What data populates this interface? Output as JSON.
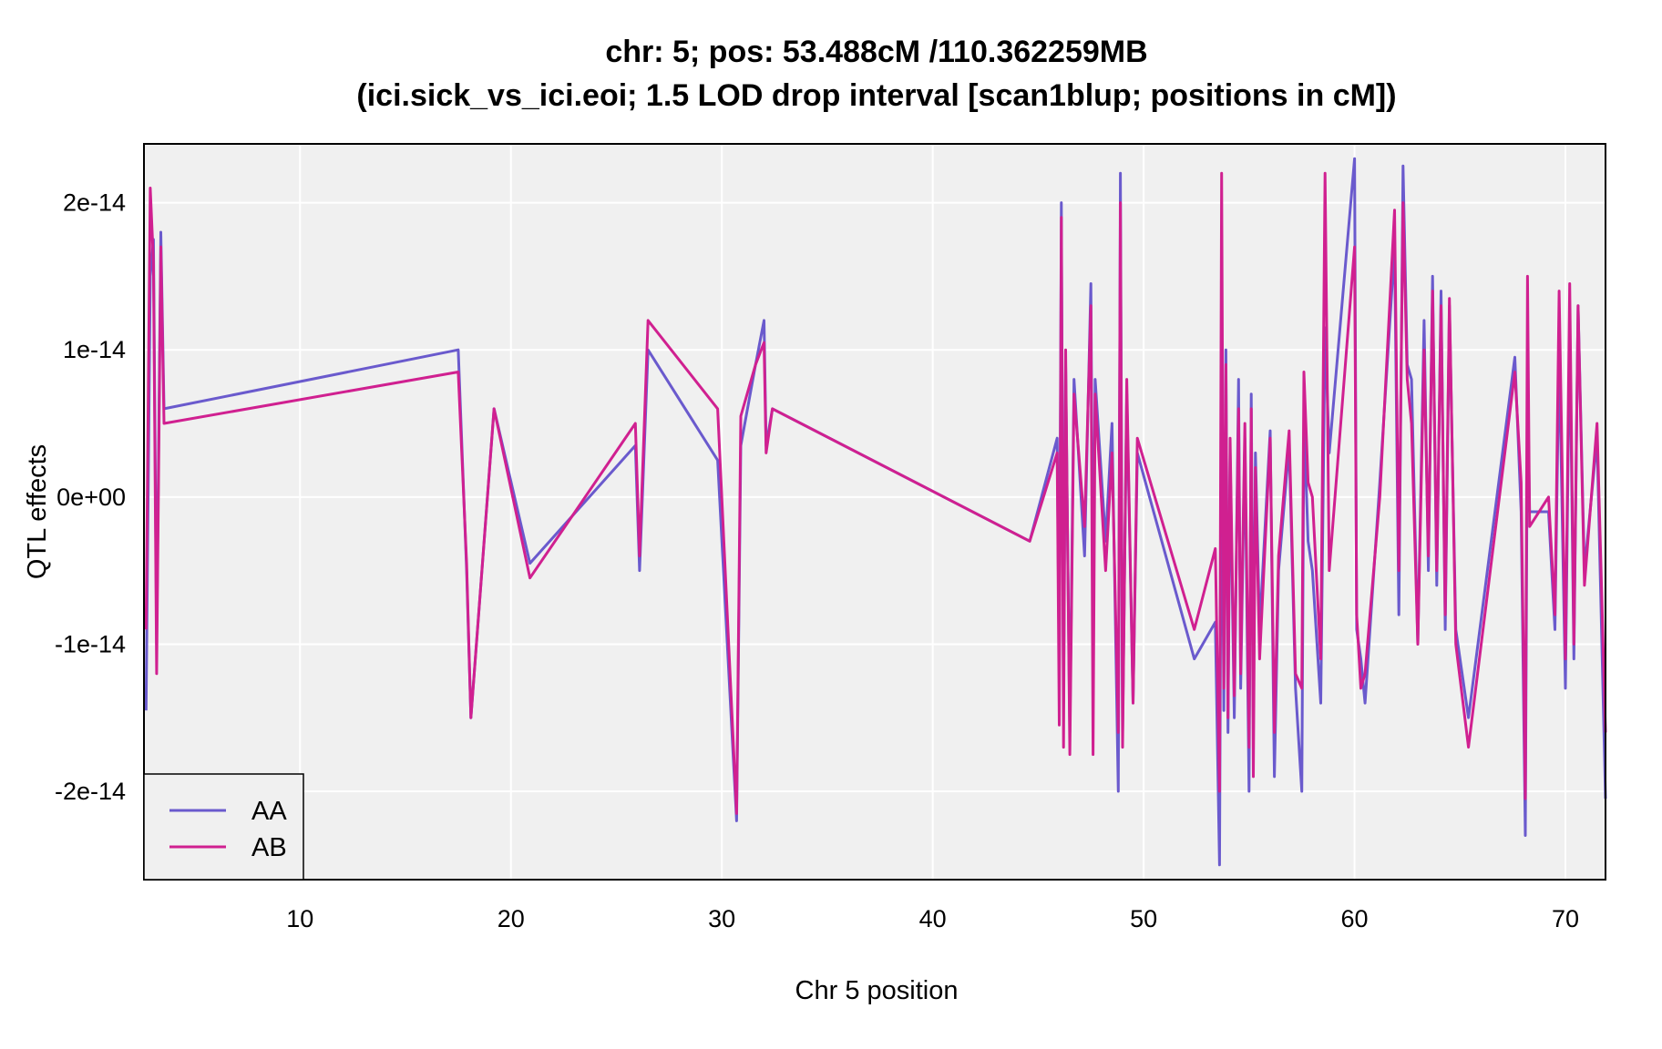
{
  "chart_data": {
    "type": "line",
    "title": "chr: 5; pos: 53.488cM /110.362259MB",
    "subtitle": "(ici.sick_vs_ici.eoi; 1.5 LOD drop interval [scan1blup; positions in cM])",
    "xlabel": "Chr 5 position",
    "ylabel": "QTL effects",
    "xlim": [
      2.6,
      71.9
    ],
    "ylim": [
      -2.6e-14,
      2.4e-14
    ],
    "grid": true,
    "background": "#f0f0f0",
    "legend_position": "bottom-left",
    "x_ticks": [
      {
        "value": 10,
        "label": "10"
      },
      {
        "value": 20,
        "label": "20"
      },
      {
        "value": 30,
        "label": "30"
      },
      {
        "value": 40,
        "label": "40"
      },
      {
        "value": 50,
        "label": "50"
      },
      {
        "value": 60,
        "label": "60"
      },
      {
        "value": 70,
        "label": "70"
      }
    ],
    "y_ticks": [
      {
        "value": -2e-14,
        "label": "-2e-14"
      },
      {
        "value": -1e-14,
        "label": "-1e-14"
      },
      {
        "value": 0,
        "label": "0e+00"
      },
      {
        "value": 1e-14,
        "label": "1e-14"
      },
      {
        "value": 2e-14,
        "label": "2e-14"
      }
    ],
    "x": [
      2.7,
      2.9,
      3.05,
      3.2,
      3.4,
      3.55,
      17.5,
      17.9,
      18.1,
      19.2,
      20.9,
      25.9,
      26.1,
      26.5,
      29.8,
      30.7,
      30.9,
      31.6,
      32.0,
      32.1,
      32.4,
      44.6,
      45.9,
      46.0,
      46.1,
      46.2,
      46.3,
      46.5,
      46.7,
      47.2,
      47.5,
      47.6,
      47.7,
      48.2,
      48.5,
      48.8,
      48.9,
      49.0,
      49.2,
      49.5,
      49.7,
      52.4,
      53.4,
      53.6,
      53.7,
      53.8,
      53.9,
      54.0,
      54.1,
      54.3,
      54.5,
      54.6,
      54.8,
      55.0,
      55.1,
      55.2,
      55.3,
      55.5,
      56.0,
      56.2,
      56.4,
      56.9,
      57.2,
      57.5,
      57.6,
      57.8,
      58.0,
      58.4,
      58.6,
      58.8,
      60.0,
      60.1,
      60.3,
      60.5,
      61.2,
      61.9,
      62.1,
      62.3,
      62.5,
      62.7,
      63.0,
      63.3,
      63.5,
      63.7,
      63.9,
      64.1,
      64.3,
      64.5,
      64.8,
      65.4,
      67.6,
      67.9,
      68.1,
      68.2,
      68.3,
      69.2,
      69.5,
      69.7,
      70.0,
      70.2,
      70.4,
      70.6,
      70.9,
      71.5,
      71.9
    ],
    "series": [
      {
        "name": "AA",
        "color": "#6a5acd",
        "values": [
          -1.45e-14,
          1.5e-14,
          1.75e-14,
          -1e-14,
          1.8e-14,
          6e-15,
          1e-14,
          -5e-15,
          -1.5e-14,
          6e-15,
          -4.5e-15,
          3.5e-15,
          -5e-15,
          1e-14,
          2.5e-15,
          -2.2e-14,
          3.5e-15,
          9e-15,
          1.2e-14,
          3.5e-15,
          6e-15,
          -3e-15,
          4e-15,
          -1.2e-14,
          2e-14,
          -1.4e-14,
          9e-15,
          -1.6e-14,
          8e-15,
          -4e-15,
          1.45e-14,
          -9e-15,
          8e-15,
          -3e-15,
          5e-15,
          -2e-14,
          2.2e-14,
          -1.6e-14,
          7e-15,
          -1.4e-14,
          3e-15,
          -1.1e-14,
          -8.5e-15,
          -2.5e-14,
          8e-15,
          -1.45e-14,
          1e-14,
          -1.6e-14,
          3e-15,
          -1.5e-14,
          8e-15,
          -1.3e-14,
          4e-15,
          -2e-14,
          7e-15,
          -1.5e-14,
          3e-15,
          -9e-15,
          4.5e-15,
          -1.9e-14,
          -5e-15,
          3.5e-15,
          -1.3e-14,
          -2e-14,
          5.5e-15,
          -3e-15,
          -5e-15,
          -1.4e-14,
          1.15e-14,
          3e-15,
          2.3e-14,
          -9e-15,
          -1.1e-14,
          -1.4e-14,
          1e-15,
          1.7e-14,
          -8e-15,
          2.25e-14,
          9e-15,
          8e-15,
          -1e-14,
          1.2e-14,
          -5e-15,
          1.5e-14,
          -6e-15,
          1.4e-14,
          -9e-15,
          1.3e-14,
          -9e-15,
          -1.5e-14,
          9.5e-15,
          -1e-15,
          -2.3e-14,
          8e-15,
          -1e-15,
          -1e-15,
          -9e-15,
          1e-14,
          -1.3e-14,
          1.2e-14,
          -1.1e-14,
          1.3e-14,
          -5e-15,
          4e-15,
          -2.05e-14
        ]
      },
      {
        "name": "AB",
        "color": "#d02090",
        "values": [
          -9e-15,
          2.1e-14,
          1.6e-14,
          -1.2e-14,
          1.7e-14,
          5e-15,
          8.5e-15,
          -4.5e-15,
          -1.5e-14,
          6e-15,
          -5.5e-15,
          5e-15,
          -4e-15,
          1.2e-14,
          6e-15,
          -2.15e-14,
          5.5e-15,
          9e-15,
          1.05e-14,
          3e-15,
          6e-15,
          -3e-15,
          3e-15,
          -1.55e-14,
          1.9e-14,
          -1.7e-14,
          1e-14,
          -1.75e-14,
          7e-15,
          -2e-15,
          1.3e-14,
          -1.75e-14,
          7e-15,
          -5e-15,
          3e-15,
          -1.6e-14,
          2e-14,
          -1.7e-14,
          8e-15,
          -1.4e-14,
          4e-15,
          -9e-15,
          -3.5e-15,
          -2e-14,
          2.2e-14,
          -1.3e-14,
          9e-15,
          -1.5e-14,
          4e-15,
          -1.35e-14,
          6e-15,
          -1.2e-14,
          5e-15,
          -1.7e-14,
          6e-15,
          -1.9e-14,
          2e-15,
          -1.1e-14,
          4e-15,
          -1.6e-14,
          -4e-15,
          4.5e-15,
          -1.2e-14,
          -1.3e-14,
          8.5e-15,
          1e-15,
          0.0,
          -1.1e-14,
          2.2e-14,
          -5e-15,
          1.7e-14,
          -8e-15,
          -1.3e-14,
          -1.2e-14,
          0.0,
          1.95e-14,
          -5e-15,
          2e-14,
          8e-15,
          5e-15,
          -1e-14,
          1e-14,
          -4e-15,
          1.4e-14,
          -5e-15,
          1.3e-14,
          -8e-15,
          1.35e-14,
          -1e-14,
          -1.7e-14,
          8.5e-15,
          1e-15,
          -2.05e-14,
          1.5e-14,
          -2e-15,
          0.0,
          -8e-15,
          1.4e-14,
          -1.1e-14,
          1.45e-14,
          -1e-14,
          1.3e-14,
          -6e-15,
          5e-15,
          -1.6e-14
        ]
      }
    ]
  }
}
